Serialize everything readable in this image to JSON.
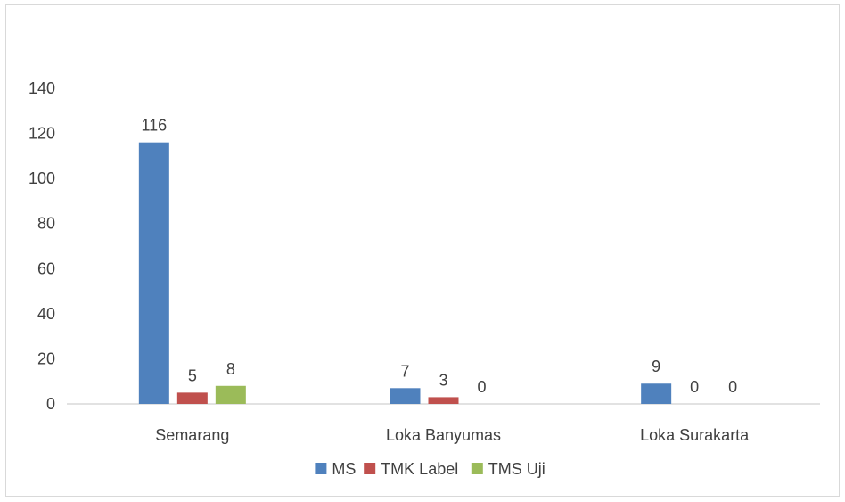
{
  "chart_data": {
    "type": "bar",
    "title": "",
    "xlabel": "",
    "ylabel": "",
    "categories": [
      "Semarang",
      "Loka Banyumas",
      "Loka Surakarta"
    ],
    "series": [
      {
        "name": "MS",
        "values": [
          116,
          7,
          9
        ],
        "labels": [
          "116",
          "7",
          "9"
        ],
        "color": "#4f81bd"
      },
      {
        "name": "TMK Label",
        "values": [
          5,
          3,
          0
        ],
        "labels": [
          "5",
          "3",
          "0"
        ],
        "color": "#c0504d"
      },
      {
        "name": "TMS Uji",
        "values": [
          8,
          0,
          0
        ],
        "labels": [
          "8",
          "0",
          "0"
        ],
        "color": "#9bbb59"
      }
    ],
    "ylim": [
      0,
      140
    ],
    "yticks": [
      "0",
      "20",
      "40",
      "60",
      "80",
      "100",
      "120",
      "140"
    ],
    "grid": false,
    "legend_position": "bottom"
  }
}
